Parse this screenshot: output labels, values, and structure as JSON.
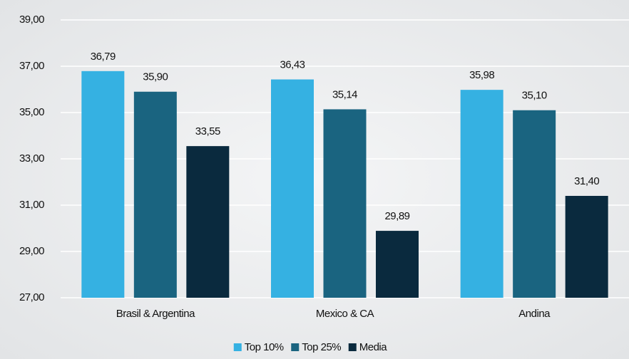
{
  "chart_data": {
    "type": "bar",
    "categories": [
      "Brasil & Argentina",
      "Mexico & CA",
      "Andina"
    ],
    "series": [
      {
        "name": "Top 10%",
        "color": "#35b1e2",
        "values": [
          36.79,
          36.43,
          35.98
        ],
        "value_labels": [
          "36,79",
          "36,43",
          "35,98"
        ]
      },
      {
        "name": "Top 25%",
        "color": "#1a6480",
        "values": [
          35.9,
          35.14,
          35.1
        ],
        "value_labels": [
          "35,90",
          "35,14",
          "35,10"
        ]
      },
      {
        "name": "Media",
        "color": "#0a2a3e",
        "values": [
          33.55,
          29.89,
          31.4
        ],
        "value_labels": [
          "33,55",
          "29,89",
          "31,40"
        ]
      }
    ],
    "ylim": [
      27,
      39
    ],
    "yticks": [
      {
        "value": 27,
        "label": "27,00"
      },
      {
        "value": 29,
        "label": "29,00"
      },
      {
        "value": 31,
        "label": "31,00"
      },
      {
        "value": 33,
        "label": "33,00"
      },
      {
        "value": 35,
        "label": "35,00"
      },
      {
        "value": 37,
        "label": "37,00"
      },
      {
        "value": 39,
        "label": "39,00"
      }
    ],
    "grid": true
  }
}
